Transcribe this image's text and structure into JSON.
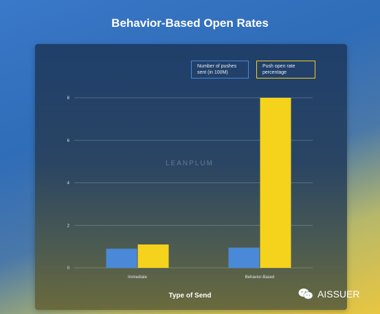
{
  "title": "Behavior-Based Open Rates",
  "watermark": "LEANPLUM",
  "brand": {
    "text": "AISSUER",
    "icon": "wechat-icon"
  },
  "legend": {
    "series1": "Number of pushes sent (in 100M)",
    "series2": "Push open rate percentage"
  },
  "colors": {
    "series1": "#4a89d8",
    "series2": "#f5d21c"
  },
  "chart_data": {
    "type": "bar",
    "title": "Behavior-Based Open Rates",
    "xlabel": "Type of Send",
    "ylabel": "",
    "categories": [
      "Immediate",
      "Behavior-Based"
    ],
    "series": [
      {
        "name": "Number of pushes sent (in 100M)",
        "values": [
          0.9,
          0.95
        ]
      },
      {
        "name": "Push open rate percentage",
        "values": [
          1.1,
          8.0
        ]
      }
    ],
    "yticks": [
      0,
      2,
      4,
      6,
      8
    ],
    "ylim": [
      0,
      8
    ],
    "grid": true,
    "legend_position": "top-right"
  }
}
